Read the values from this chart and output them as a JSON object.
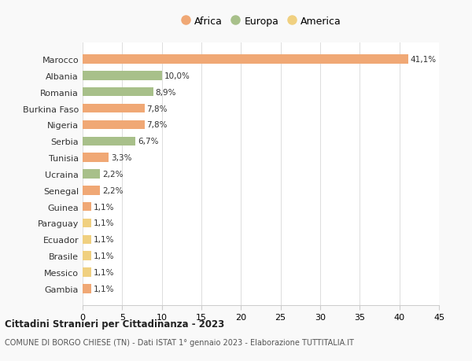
{
  "countries": [
    "Marocco",
    "Albania",
    "Romania",
    "Burkina Faso",
    "Nigeria",
    "Serbia",
    "Tunisia",
    "Ucraina",
    "Senegal",
    "Guinea",
    "Paraguay",
    "Ecuador",
    "Brasile",
    "Messico",
    "Gambia"
  ],
  "values": [
    41.1,
    10.0,
    8.9,
    7.8,
    7.8,
    6.7,
    3.3,
    2.2,
    2.2,
    1.1,
    1.1,
    1.1,
    1.1,
    1.1,
    1.1
  ],
  "labels": [
    "41,1%",
    "10,0%",
    "8,9%",
    "7,8%",
    "7,8%",
    "6,7%",
    "3,3%",
    "2,2%",
    "2,2%",
    "1,1%",
    "1,1%",
    "1,1%",
    "1,1%",
    "1,1%",
    "1,1%"
  ],
  "continents": [
    "Africa",
    "Europa",
    "Europa",
    "Africa",
    "Africa",
    "Europa",
    "Africa",
    "Europa",
    "Africa",
    "Africa",
    "America",
    "America",
    "America",
    "America",
    "Africa"
  ],
  "colors": {
    "Africa": "#F0A875",
    "Europa": "#A8C08A",
    "America": "#F0D080"
  },
  "legend_items": [
    "Africa",
    "Europa",
    "America"
  ],
  "legend_colors": [
    "#F0A875",
    "#A8C08A",
    "#F0D080"
  ],
  "xlim": [
    0,
    45
  ],
  "xticks": [
    0,
    5,
    10,
    15,
    20,
    25,
    30,
    35,
    40,
    45
  ],
  "title_main": "Cittadini Stranieri per Cittadinanza - 2023",
  "title_sub": "COMUNE DI BORGO CHIESE (TN) - Dati ISTAT 1° gennaio 2023 - Elaborazione TUTTITALIA.IT",
  "background_color": "#f9f9f9",
  "bar_background": "#ffffff",
  "bar_label_fontsize": 7.5,
  "ytick_fontsize": 8,
  "xtick_fontsize": 8,
  "legend_fontsize": 9
}
